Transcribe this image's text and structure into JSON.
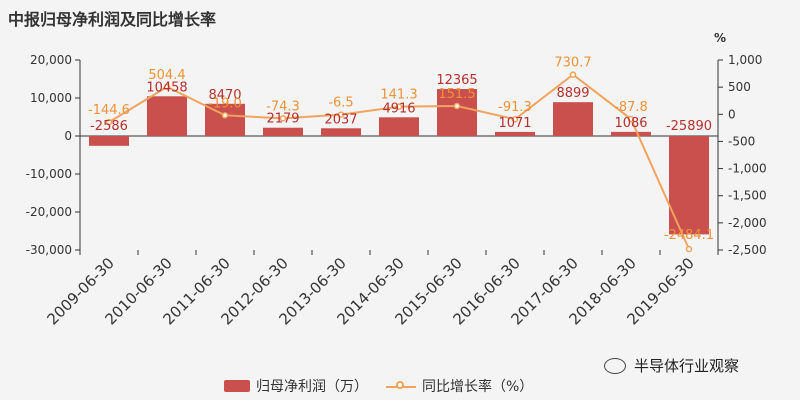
{
  "title": "中报归母净利润及同比增长率",
  "watermark": "半导体行业观察",
  "legend": {
    "bar": "归母净利润（万）",
    "line": "同比增长率（%）"
  },
  "colors": {
    "bar": "#c9504d",
    "bar_label": "#b5312f",
    "line": "#f0a35e",
    "line_label": "#f0923b"
  },
  "chart_data": {
    "type": "bar",
    "categories": [
      "2009-06-30",
      "2010-06-30",
      "2011-06-30",
      "2012-06-30",
      "2013-06-30",
      "2014-06-30",
      "2015-06-30",
      "2016-06-30",
      "2017-06-30",
      "2018-06-30",
      "2019-06-30"
    ],
    "series": [
      {
        "name": "归母净利润（万）",
        "type": "bar",
        "axis": "left",
        "values": [
          -2586,
          10458,
          8470,
          2179,
          2037,
          4916,
          12365,
          1071,
          8899,
          1086,
          -25890
        ]
      },
      {
        "name": "同比增长率（%）",
        "type": "line",
        "axis": "right",
        "values": [
          -144.6,
          504.4,
          -19.0,
          -74.3,
          -6.5,
          141.3,
          151.5,
          -91.3,
          730.7,
          -87.8,
          -2484.1
        ]
      }
    ],
    "left_axis": {
      "ylim": [
        -30000,
        20000
      ],
      "ticks": [
        20000,
        10000,
        0,
        -10000,
        -20000,
        -30000
      ],
      "tick_labels": [
        "20,000",
        "10,000",
        "0",
        "-10,000",
        "-20,000",
        "-30,000"
      ]
    },
    "right_axis": {
      "unit": "%",
      "ylim": [
        -2500,
        1000
      ],
      "ticks": [
        1000,
        500,
        0,
        -500,
        -1000,
        -1500,
        -2000,
        -2500
      ],
      "tick_labels": [
        "1,000",
        "500",
        "0",
        "-500",
        "-1,000",
        "-1,500",
        "-2,000",
        "-2,500"
      ]
    },
    "bar_labels": [
      "-2586",
      "10458",
      "8470",
      "2179",
      "2037",
      "4916",
      "12365",
      "1071",
      "8899",
      "1086",
      "-25890"
    ],
    "line_labels": [
      "-144.6",
      "504.4",
      "-19.0",
      "-74.3",
      "-6.5",
      "141.3",
      "151.5",
      "-91.3",
      "730.7",
      "-87.8",
      "-2484.1"
    ],
    "grid": false,
    "legend_position": "bottom"
  }
}
